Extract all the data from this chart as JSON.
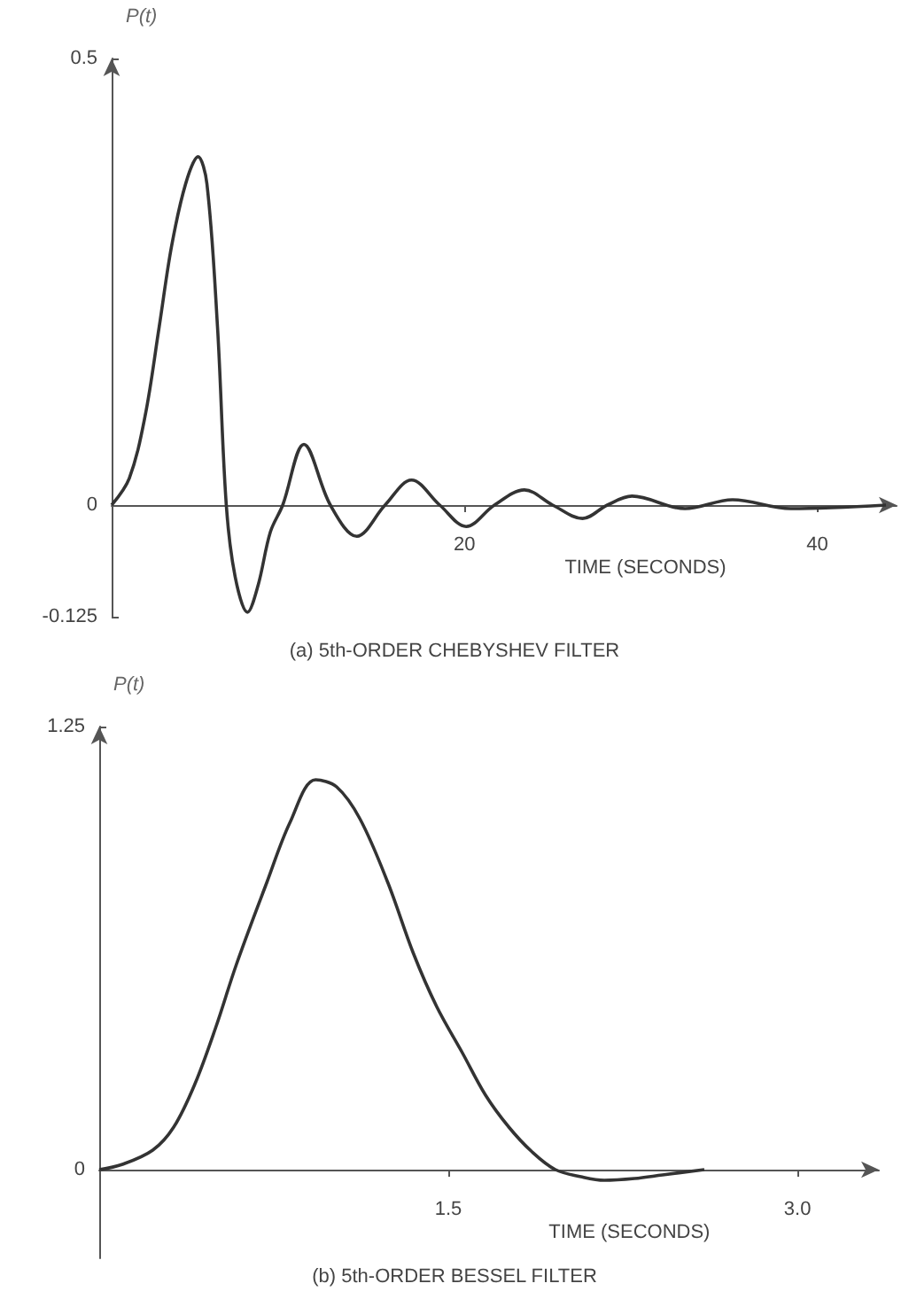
{
  "chart_data": [
    {
      "type": "line",
      "title": "(a) 5th-ORDER CHEBYSHEV FILTER",
      "xlabel": "TIME (SECONDS)",
      "ylabel": "P(t)",
      "x": [
        0,
        1.0,
        1.9,
        2.7,
        3.4,
        4.2,
        4.9,
        5.4,
        6.0,
        6.5,
        7.0,
        7.7,
        8.3,
        9.0,
        9.7,
        10.9,
        12.4,
        13.9,
        15.5,
        17.0,
        18.6,
        20.1,
        21.7,
        23.4,
        25.0,
        26.7,
        28.1,
        29.5,
        32.5,
        35.2,
        38.5,
        43.9
      ],
      "values": [
        0,
        0.03,
        0.1,
        0.2,
        0.29,
        0.36,
        0.39,
        0.36,
        0.2,
        0,
        -0.08,
        -0.12,
        -0.09,
        -0.03,
        0,
        0.068,
        0,
        -0.035,
        0,
        0.028,
        0,
        -0.024,
        0,
        0.017,
        0,
        -0.015,
        0,
        0.01,
        -0.004,
        0.006,
        -0.004,
        0
      ],
      "color": "#333333",
      "xlim": [
        0,
        44.5
      ],
      "xticks": [
        20,
        40
      ],
      "ylim": [
        -0.125,
        0.5
      ],
      "yticks": [
        -0.125,
        0,
        0.5
      ],
      "grid": false,
      "marker": "none",
      "line_style": "solid"
    },
    {
      "type": "line",
      "title": "(b) 5th-ORDER BESSEL FILTER",
      "xlabel": "TIME (SECONDS)",
      "ylabel": "P(t)",
      "x": [
        0,
        0.1,
        0.23,
        0.32,
        0.41,
        0.5,
        0.59,
        0.72,
        0.82,
        0.93,
        1.02,
        1.12,
        1.24,
        1.35,
        1.45,
        1.56,
        1.66,
        1.76,
        1.86,
        1.96,
        2.07,
        2.17,
        2.3,
        2.42,
        2.6
      ],
      "values": [
        0,
        0.015,
        0.055,
        0.12,
        0.24,
        0.4,
        0.58,
        0.81,
        0.98,
        1.1,
        1.08,
        0.99,
        0.81,
        0.61,
        0.46,
        0.33,
        0.21,
        0.12,
        0.05,
        0,
        -0.02,
        -0.03,
        -0.025,
        -0.015,
        0
      ],
      "color": "#333333",
      "xlim": [
        0,
        3.35
      ],
      "xticks": [
        1.5,
        {
          "value": 3,
          "label": "3.0"
        }
      ],
      "ylim": [
        -0.25,
        1.25
      ],
      "yticks": [
        0,
        1.25
      ],
      "grid": false,
      "marker": "none",
      "line_style": "solid"
    }
  ]
}
